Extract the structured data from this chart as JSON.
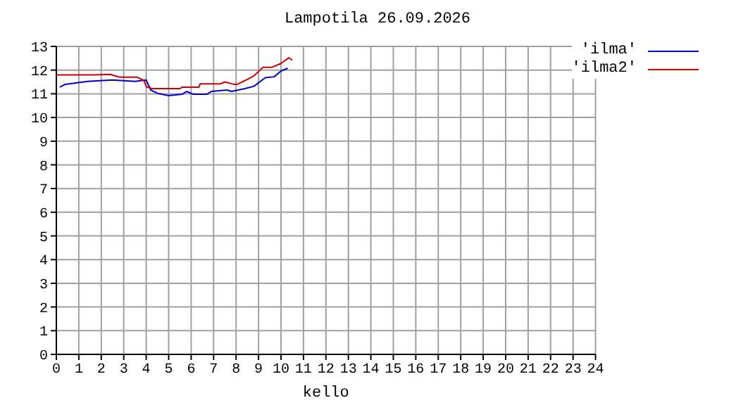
{
  "chart_data": {
    "type": "line",
    "title": "Lampotila 26.09.2026",
    "xlabel": "kello",
    "xlim": [
      0,
      24
    ],
    "xticks": [
      0,
      1,
      2,
      3,
      4,
      5,
      6,
      7,
      8,
      9,
      10,
      11,
      12,
      13,
      14,
      15,
      16,
      17,
      18,
      19,
      20,
      21,
      22,
      23,
      24
    ],
    "ylim": [
      0,
      13
    ],
    "yticks": [
      0,
      1,
      2,
      3,
      4,
      5,
      6,
      7,
      8,
      9,
      10,
      11,
      12,
      13
    ],
    "grid": true,
    "legend": "top right",
    "marker": "none",
    "line_style": "solid",
    "series": [
      {
        "name": "'ilma'",
        "color": "#0000cc",
        "x": [
          0.15,
          0.4,
          1.4,
          2.5,
          3.5,
          4.0,
          4.2,
          4.5,
          5.0,
          5.6,
          5.8,
          6.1,
          6.7,
          6.9,
          7.6,
          7.8,
          8.4,
          8.8,
          9.3,
          9.7,
          10.0,
          10.3
        ],
        "values": [
          11.28,
          11.4,
          11.52,
          11.58,
          11.52,
          11.58,
          11.16,
          11.02,
          10.92,
          10.98,
          11.1,
          10.98,
          10.98,
          11.1,
          11.16,
          11.1,
          11.22,
          11.32,
          11.68,
          11.72,
          11.96,
          12.08
        ]
      },
      {
        "name": "'ilma2'",
        "color": "#cc0000",
        "x": [
          0,
          1.7,
          2.4,
          2.8,
          3.6,
          3.9,
          4.0,
          4.25,
          5.5,
          5.6,
          6.35,
          6.4,
          7.3,
          7.5,
          7.9,
          8.05,
          8.4,
          8.8,
          9.2,
          9.6,
          10.0,
          10.35,
          10.5
        ],
        "values": [
          11.8,
          11.8,
          11.82,
          11.7,
          11.7,
          11.56,
          11.3,
          11.22,
          11.22,
          11.28,
          11.28,
          11.42,
          11.42,
          11.5,
          11.4,
          11.4,
          11.56,
          11.76,
          12.12,
          12.12,
          12.28,
          12.52,
          12.42
        ]
      }
    ]
  }
}
